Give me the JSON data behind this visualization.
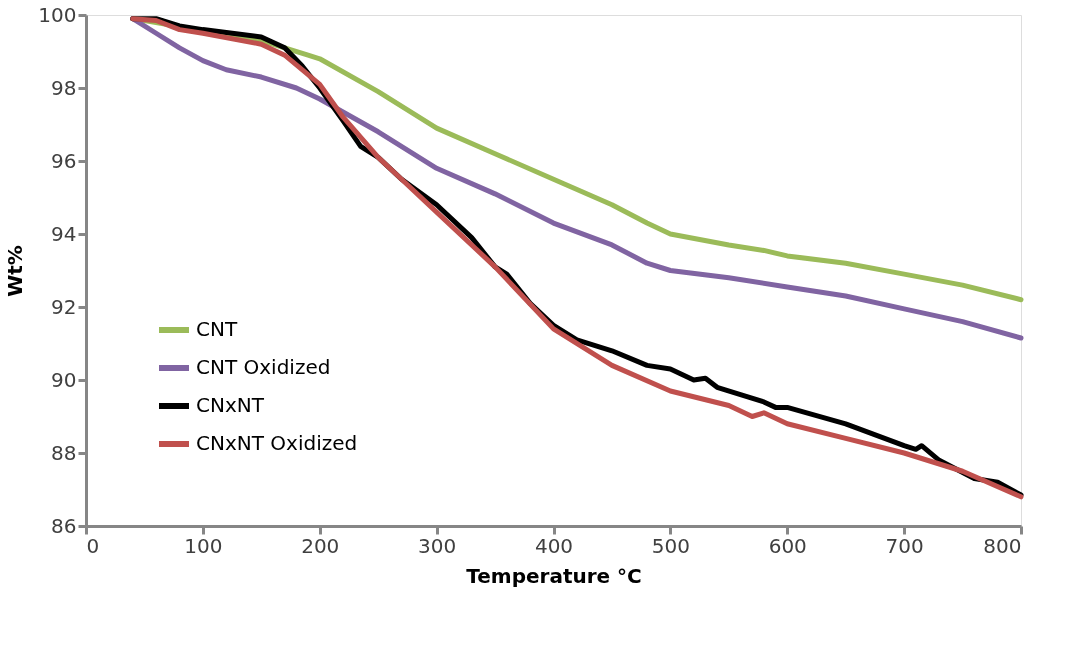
{
  "chart_data": {
    "type": "line",
    "xlabel": "Temperature °C",
    "ylabel": "Wt%",
    "xlim": [
      0,
      800
    ],
    "ylim": [
      86,
      100
    ],
    "xticks": [
      0,
      100,
      200,
      300,
      400,
      500,
      600,
      700,
      800
    ],
    "yticks": [
      86,
      88,
      90,
      92,
      94,
      96,
      98,
      100
    ],
    "grid": false,
    "legend": "bottom left",
    "marker": "none",
    "line_style": "solid",
    "series": [
      {
        "name": "CNT",
        "color": "#9bbb59",
        "x": [
          40,
          150,
          190,
          200,
          250,
          300,
          350,
          400,
          450,
          480,
          500,
          550,
          580,
          600,
          650,
          700,
          750,
          800
        ],
        "values": [
          99.9,
          99.3,
          98.9,
          98.8,
          97.9,
          96.9,
          96.2,
          95.5,
          94.8,
          94.3,
          94.0,
          93.7,
          93.55,
          93.4,
          93.2,
          92.9,
          92.6,
          92.2
        ]
      },
      {
        "name": "CNT Oxidized",
        "color": "#8064a2",
        "x": [
          40,
          60,
          80,
          100,
          120,
          150,
          180,
          200,
          250,
          300,
          350,
          400,
          450,
          480,
          500,
          550,
          600,
          650,
          700,
          750,
          800
        ],
        "values": [
          99.9,
          99.5,
          99.1,
          98.75,
          98.5,
          98.3,
          98.0,
          97.7,
          96.8,
          95.8,
          95.1,
          94.3,
          93.7,
          93.2,
          93.0,
          92.8,
          92.55,
          92.3,
          91.95,
          91.6,
          91.15
        ]
      },
      {
        "name": "CNxNT",
        "color": "#000000",
        "x": [
          40,
          60,
          80,
          100,
          150,
          170,
          185,
          200,
          220,
          235,
          250,
          270,
          300,
          330,
          350,
          360,
          380,
          400,
          420,
          450,
          480,
          500,
          520,
          530,
          540,
          560,
          580,
          590,
          600,
          650,
          700,
          710,
          715,
          730,
          760,
          780,
          800
        ],
        "values": [
          99.9,
          99.9,
          99.7,
          99.6,
          99.4,
          99.1,
          98.6,
          98.0,
          97.1,
          96.4,
          96.1,
          95.5,
          94.8,
          93.9,
          93.1,
          92.9,
          92.1,
          91.5,
          91.1,
          90.8,
          90.4,
          90.3,
          90.0,
          90.05,
          89.8,
          89.6,
          89.4,
          89.25,
          89.25,
          88.8,
          88.2,
          88.1,
          88.2,
          87.8,
          87.3,
          87.2,
          86.85
        ]
      },
      {
        "name": "CNxNT Oxidized",
        "color": "#c0504d",
        "x": [
          40,
          60,
          80,
          100,
          150,
          170,
          200,
          220,
          250,
          270,
          300,
          350,
          400,
          450,
          500,
          550,
          570,
          580,
          600,
          650,
          700,
          750,
          800
        ],
        "values": [
          99.9,
          99.85,
          99.6,
          99.5,
          99.2,
          98.9,
          98.1,
          97.2,
          96.1,
          95.5,
          94.6,
          93.1,
          91.4,
          90.4,
          89.7,
          89.3,
          89.0,
          89.1,
          88.8,
          88.4,
          88.0,
          87.5,
          86.8
        ]
      }
    ]
  }
}
